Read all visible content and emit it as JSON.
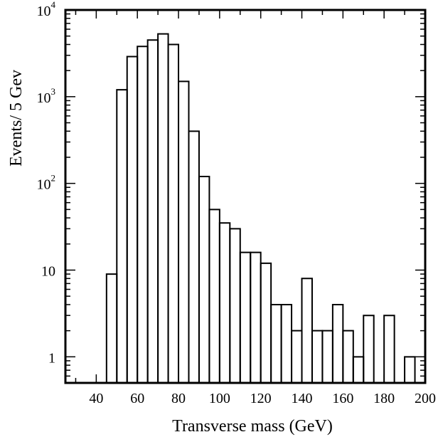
{
  "chart_data": {
    "type": "histogram",
    "title": "",
    "xlabel": "Transverse mass (GeV)",
    "ylabel": "Events/ 5 Gev",
    "x_scale": "linear",
    "y_scale": "log",
    "xlim": [
      25,
      200
    ],
    "ylim": [
      0.5,
      10000
    ],
    "bin_width": 5,
    "x_ticks": [
      40,
      60,
      80,
      100,
      120,
      140,
      160,
      180,
      200
    ],
    "y_ticks": [
      {
        "value": 1,
        "label": "1"
      },
      {
        "value": 10,
        "label": "10"
      },
      {
        "value": 100,
        "base": "10",
        "exp": "2"
      },
      {
        "value": 1000,
        "base": "10",
        "exp": "3"
      },
      {
        "value": 10000,
        "base": "10",
        "exp": "4"
      }
    ],
    "bins": [
      {
        "low": 45,
        "high": 50,
        "count": 9
      },
      {
        "low": 50,
        "high": 55,
        "count": 1200
      },
      {
        "low": 55,
        "high": 60,
        "count": 2900
      },
      {
        "low": 60,
        "high": 65,
        "count": 3800
      },
      {
        "low": 65,
        "high": 70,
        "count": 4500
      },
      {
        "low": 70,
        "high": 75,
        "count": 5300
      },
      {
        "low": 75,
        "high": 80,
        "count": 4000
      },
      {
        "low": 80,
        "high": 85,
        "count": 1500
      },
      {
        "low": 85,
        "high": 90,
        "count": 400
      },
      {
        "low": 90,
        "high": 95,
        "count": 120
      },
      {
        "low": 95,
        "high": 100,
        "count": 50
      },
      {
        "low": 100,
        "high": 105,
        "count": 35
      },
      {
        "low": 105,
        "high": 110,
        "count": 30
      },
      {
        "low": 110,
        "high": 115,
        "count": 16
      },
      {
        "low": 115,
        "high": 120,
        "count": 16
      },
      {
        "low": 120,
        "high": 125,
        "count": 12
      },
      {
        "low": 125,
        "high": 130,
        "count": 4
      },
      {
        "low": 130,
        "high": 135,
        "count": 4
      },
      {
        "low": 135,
        "high": 140,
        "count": 2
      },
      {
        "low": 140,
        "high": 145,
        "count": 8
      },
      {
        "low": 145,
        "high": 150,
        "count": 2
      },
      {
        "low": 150,
        "high": 155,
        "count": 2
      },
      {
        "low": 155,
        "high": 160,
        "count": 4
      },
      {
        "low": 160,
        "high": 165,
        "count": 2
      },
      {
        "low": 165,
        "high": 170,
        "count": 1
      },
      {
        "low": 170,
        "high": 175,
        "count": 3
      },
      {
        "low": 175,
        "high": 180,
        "count": 0
      },
      {
        "low": 180,
        "high": 185,
        "count": 3
      },
      {
        "low": 185,
        "high": 190,
        "count": 0
      },
      {
        "low": 190,
        "high": 195,
        "count": 1
      }
    ]
  }
}
